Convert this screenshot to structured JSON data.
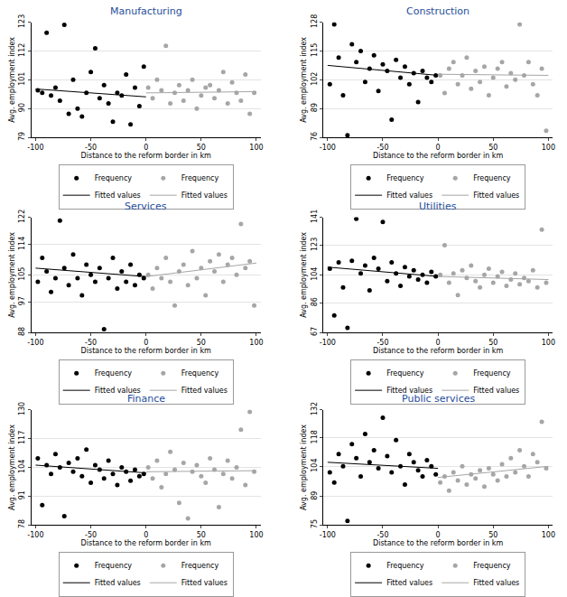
{
  "chart_data": [
    {
      "type": "scatter",
      "title": "Manufacturing",
      "x_label": "Distance to the reform border in km",
      "y_label": "Avg. employment index",
      "xlim": [
        -104,
        104
      ],
      "xticks": [
        -100,
        -50,
        0,
        50,
        100
      ],
      "ylim": [
        79,
        123
      ],
      "yticks": [
        79,
        90,
        101,
        112,
        123
      ],
      "grid": true,
      "legend": "bottom",
      "series": [
        {
          "name": "Frequency",
          "type": "scatter",
          "marker": "circle",
          "color": "#000000",
          "x": [
            -98,
            -94,
            -90,
            -86,
            -82,
            -78,
            -74,
            -70,
            -66,
            -62,
            -58,
            -54,
            -50,
            -46,
            -42,
            -38,
            -34,
            -30,
            -26,
            -22,
            -18,
            -14,
            -10,
            -6,
            -2
          ],
          "values": [
            97,
            96,
            119,
            95,
            98,
            93,
            122,
            88,
            101,
            90,
            87,
            96,
            104,
            113,
            94,
            99,
            92,
            85,
            96,
            95,
            103,
            84,
            98,
            91,
            106
          ]
        },
        {
          "name": "Frequency",
          "type": "scatter",
          "marker": "circle",
          "color": "#a6a6a6",
          "x": [
            2,
            6,
            10,
            14,
            18,
            22,
            26,
            30,
            34,
            38,
            42,
            46,
            50,
            54,
            58,
            62,
            66,
            70,
            74,
            78,
            82,
            86,
            90,
            94,
            98
          ],
          "values": [
            98,
            94,
            101,
            97,
            114,
            92,
            96,
            99,
            93,
            97,
            101,
            90,
            95,
            98,
            99,
            94,
            97,
            104,
            92,
            100,
            96,
            93,
            103,
            88,
            96
          ]
        },
        {
          "name": "Fitted values",
          "type": "line",
          "line_style": "solid",
          "color": "#000000",
          "x": [
            -100,
            0
          ],
          "values": [
            97.5,
            94.5
          ]
        },
        {
          "name": "Fitted values",
          "type": "line",
          "line_style": "solid",
          "color": "#a6a6a6",
          "x": [
            0,
            100
          ],
          "values": [
            96,
            96.5
          ]
        }
      ]
    },
    {
      "type": "scatter",
      "title": "Construction",
      "x_label": "Distance to the reform border in km",
      "y_label": "Avg. employment index",
      "xlim": [
        -104,
        104
      ],
      "xticks": [
        -100,
        -50,
        0,
        50,
        100
      ],
      "ylim": [
        76,
        128
      ],
      "yticks": [
        76,
        89,
        102,
        115,
        128
      ],
      "grid": true,
      "legend": "bottom",
      "series": [
        {
          "name": "Frequency",
          "type": "scatter",
          "marker": "circle",
          "color": "#000000",
          "x": [
            -98,
            -94,
            -90,
            -86,
            -82,
            -78,
            -74,
            -70,
            -66,
            -62,
            -58,
            -54,
            -50,
            -46,
            -42,
            -38,
            -34,
            -30,
            -26,
            -22,
            -18,
            -14,
            -10,
            -6,
            -2
          ],
          "values": [
            100,
            127,
            112,
            95,
            77,
            118,
            110,
            115,
            101,
            107,
            113,
            97,
            109,
            106,
            84,
            111,
            103,
            108,
            100,
            105,
            92,
            106,
            103,
            101,
            104
          ]
        },
        {
          "name": "Frequency",
          "type": "scatter",
          "marker": "circle",
          "color": "#a6a6a6",
          "x": [
            2,
            6,
            10,
            14,
            18,
            22,
            26,
            30,
            34,
            38,
            42,
            46,
            50,
            54,
            58,
            62,
            66,
            70,
            74,
            78,
            82,
            86,
            90,
            94,
            98
          ],
          "values": [
            104,
            96,
            107,
            110,
            100,
            104,
            112,
            98,
            106,
            101,
            108,
            95,
            103,
            107,
            110,
            99,
            105,
            102,
            127,
            104,
            110,
            100,
            95,
            107,
            79
          ]
        },
        {
          "name": "Fitted values",
          "type": "line",
          "line_style": "solid",
          "color": "#000000",
          "x": [
            -100,
            0
          ],
          "values": [
            108.5,
            104
          ]
        },
        {
          "name": "Fitted values",
          "type": "line",
          "line_style": "solid",
          "color": "#a6a6a6",
          "x": [
            0,
            100
          ],
          "values": [
            104.5,
            104
          ]
        }
      ]
    },
    {
      "type": "scatter",
      "title": "Services",
      "x_label": "Distance to the reform border in km",
      "y_label": "Avg. employment index",
      "xlim": [
        -104,
        104
      ],
      "xticks": [
        -100,
        -50,
        0,
        50,
        100
      ],
      "ylim": [
        88,
        122
      ],
      "yticks": [
        88,
        97,
        105,
        114,
        122
      ],
      "grid": true,
      "legend": "bottom",
      "series": [
        {
          "name": "Frequency",
          "type": "scatter",
          "marker": "circle",
          "color": "#000000",
          "x": [
            -98,
            -94,
            -90,
            -86,
            -82,
            -78,
            -74,
            -70,
            -66,
            -62,
            -58,
            -54,
            -50,
            -46,
            -42,
            -38,
            -34,
            -30,
            -26,
            -22,
            -18,
            -14,
            -10,
            -6,
            -2
          ],
          "values": [
            103,
            110,
            106,
            100,
            104,
            121,
            107,
            102,
            111,
            104,
            99,
            108,
            105,
            103,
            107,
            89,
            104,
            110,
            101,
            106,
            103,
            108,
            102,
            105,
            104
          ]
        },
        {
          "name": "Frequency",
          "type": "scatter",
          "marker": "circle",
          "color": "#a6a6a6",
          "x": [
            2,
            6,
            10,
            14,
            18,
            22,
            26,
            30,
            34,
            38,
            42,
            46,
            50,
            54,
            58,
            62,
            66,
            70,
            74,
            78,
            82,
            86,
            90,
            94,
            98
          ],
          "values": [
            105,
            101,
            107,
            104,
            110,
            103,
            96,
            106,
            108,
            102,
            112,
            104,
            107,
            99,
            109,
            106,
            111,
            103,
            108,
            110,
            105,
            120,
            107,
            109,
            96
          ]
        },
        {
          "name": "Fitted values",
          "type": "line",
          "line_style": "solid",
          "color": "#000000",
          "x": [
            -100,
            0
          ],
          "values": [
            107,
            104.5
          ]
        },
        {
          "name": "Fitted values",
          "type": "line",
          "line_style": "solid",
          "color": "#a6a6a6",
          "x": [
            0,
            100
          ],
          "values": [
            104.5,
            108.5
          ]
        }
      ]
    },
    {
      "type": "scatter",
      "title": "Utilities",
      "x_label": "Distance to the reform border in km",
      "y_label": "Avg. employment index",
      "xlim": [
        -104,
        104
      ],
      "xticks": [
        -100,
        -50,
        0,
        50,
        100
      ],
      "ylim": [
        67,
        141
      ],
      "yticks": [
        67,
        86,
        104,
        123,
        141
      ],
      "grid": true,
      "legend": "bottom",
      "series": [
        {
          "name": "Frequency",
          "type": "scatter",
          "marker": "circle",
          "color": "#000000",
          "x": [
            -98,
            -94,
            -90,
            -86,
            -82,
            -78,
            -74,
            -70,
            -66,
            -62,
            -58,
            -54,
            -50,
            -46,
            -42,
            -38,
            -34,
            -30,
            -26,
            -22,
            -18,
            -14,
            -10,
            -6,
            -2
          ],
          "values": [
            108,
            78,
            112,
            96,
            70,
            113,
            140,
            105,
            110,
            94,
            115,
            108,
            138,
            100,
            112,
            105,
            97,
            109,
            103,
            107,
            101,
            104,
            99,
            106,
            103
          ]
        },
        {
          "name": "Frequency",
          "type": "scatter",
          "marker": "circle",
          "color": "#a6a6a6",
          "x": [
            2,
            6,
            10,
            14,
            18,
            22,
            26,
            30,
            34,
            38,
            42,
            46,
            50,
            54,
            58,
            62,
            66,
            70,
            74,
            78,
            82,
            86,
            90,
            94,
            98
          ],
          "values": [
            104,
            123,
            99,
            105,
            91,
            107,
            102,
            110,
            100,
            96,
            104,
            108,
            99,
            103,
            106,
            97,
            101,
            105,
            98,
            102,
            100,
            107,
            96,
            133,
            99
          ]
        },
        {
          "name": "Fitted values",
          "type": "line",
          "line_style": "solid",
          "color": "#000000",
          "x": [
            -100,
            0
          ],
          "values": [
            109,
            103
          ]
        },
        {
          "name": "Fitted values",
          "type": "line",
          "line_style": "solid",
          "color": "#a6a6a6",
          "x": [
            0,
            100
          ],
          "values": [
            103,
            101
          ]
        }
      ]
    },
    {
      "type": "scatter",
      "title": "Finance",
      "x_label": "Distance to the reform border in km",
      "y_label": "Avg. employment index",
      "xlim": [
        -104,
        104
      ],
      "xticks": [
        -100,
        -50,
        0,
        50,
        100
      ],
      "ylim": [
        78,
        130
      ],
      "yticks": [
        78,
        91,
        104,
        117,
        130
      ],
      "grid": true,
      "legend": "bottom",
      "series": [
        {
          "name": "Frequency",
          "type": "scatter",
          "marker": "circle",
          "color": "#000000",
          "x": [
            -98,
            -94,
            -90,
            -86,
            -82,
            -78,
            -74,
            -70,
            -66,
            -62,
            -58,
            -54,
            -50,
            -46,
            -42,
            -38,
            -34,
            -30,
            -26,
            -22,
            -18,
            -14,
            -10,
            -6,
            -2
          ],
          "values": [
            108,
            87,
            105,
            101,
            110,
            104,
            82,
            106,
            102,
            108,
            100,
            112,
            97,
            105,
            103,
            99,
            107,
            101,
            96,
            104,
            102,
            98,
            103,
            100,
            101
          ]
        },
        {
          "name": "Frequency",
          "type": "scatter",
          "marker": "circle",
          "color": "#a6a6a6",
          "x": [
            2,
            6,
            10,
            14,
            18,
            22,
            26,
            30,
            34,
            38,
            42,
            46,
            50,
            54,
            58,
            62,
            66,
            70,
            74,
            78,
            82,
            86,
            90,
            94,
            98
          ],
          "values": [
            104,
            99,
            107,
            95,
            101,
            111,
            103,
            88,
            106,
            81,
            102,
            105,
            100,
            97,
            108,
            103,
            86,
            101,
            107,
            99,
            104,
            121,
            96,
            129,
            102
          ]
        },
        {
          "name": "Fitted values",
          "type": "line",
          "line_style": "solid",
          "color": "#000000",
          "x": [
            -100,
            0
          ],
          "values": [
            105,
            101.5
          ]
        },
        {
          "name": "Fitted values",
          "type": "line",
          "line_style": "solid",
          "color": "#a6a6a6",
          "x": [
            0,
            100
          ],
          "values": [
            102,
            102.5
          ]
        }
      ]
    },
    {
      "type": "scatter",
      "title": "Public services",
      "x_label": "Distance to the reform border in km",
      "y_label": "Avg. employment index",
      "xlim": [
        -104,
        104
      ],
      "xticks": [
        -100,
        -50,
        0,
        50,
        100
      ],
      "ylim": [
        75,
        132
      ],
      "yticks": [
        75,
        89,
        104,
        118,
        132
      ],
      "grid": true,
      "legend": "bottom",
      "series": [
        {
          "name": "Frequency",
          "type": "scatter",
          "marker": "circle",
          "color": "#000000",
          "x": [
            -98,
            -94,
            -90,
            -86,
            -82,
            -78,
            -74,
            -70,
            -66,
            -62,
            -58,
            -54,
            -50,
            -46,
            -42,
            -38,
            -34,
            -30,
            -26,
            -22,
            -18,
            -14,
            -10,
            -6,
            -2
          ],
          "values": [
            101,
            96,
            110,
            104,
            77,
            115,
            108,
            99,
            120,
            106,
            112,
            103,
            128,
            109,
            101,
            117,
            104,
            95,
            110,
            106,
            102,
            99,
            107,
            104,
            100
          ]
        },
        {
          "name": "Frequency",
          "type": "scatter",
          "marker": "circle",
          "color": "#a6a6a6",
          "x": [
            2,
            6,
            10,
            14,
            18,
            22,
            26,
            30,
            34,
            38,
            42,
            46,
            50,
            54,
            58,
            62,
            66,
            70,
            74,
            78,
            82,
            86,
            90,
            94,
            98
          ],
          "values": [
            96,
            99,
            92,
            101,
            97,
            104,
            95,
            100,
            98,
            102,
            94,
            103,
            100,
            97,
            105,
            99,
            108,
            101,
            112,
            104,
            99,
            110,
            106,
            126,
            103
          ]
        },
        {
          "name": "Fitted values",
          "type": "line",
          "line_style": "solid",
          "color": "#000000",
          "x": [
            -100,
            0
          ],
          "values": [
            106,
            103
          ]
        },
        {
          "name": "Fitted values",
          "type": "line",
          "line_style": "solid",
          "color": "#a6a6a6",
          "x": [
            0,
            100
          ],
          "values": [
            98.5,
            104
          ]
        }
      ]
    }
  ]
}
